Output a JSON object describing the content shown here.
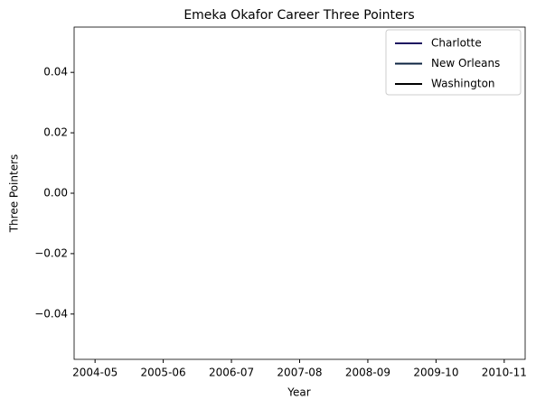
{
  "chart_data": {
    "type": "line",
    "title": "Emeka Okafor Career Three Pointers",
    "x_label": "Year",
    "y_label": "Three Pointers",
    "categories": [
      "2004-05",
      "2005-06",
      "2006-07",
      "2007-08",
      "2008-09",
      "2009-10",
      "2010-11"
    ],
    "series": [
      {
        "name": "Charlotte",
        "color": "#1d1160",
        "values": [
          null,
          null,
          null,
          null,
          null,
          null,
          null
        ]
      },
      {
        "name": "New Orleans",
        "color": "#0c2340",
        "values": [
          null,
          null,
          null,
          null,
          null,
          null,
          null
        ]
      },
      {
        "name": "Washington",
        "color": "#000000",
        "values": [
          null,
          null,
          null,
          null,
          null,
          null,
          null
        ]
      }
    ],
    "ylim": [
      -0.055,
      0.055
    ],
    "yticks": [
      {
        "value": -0.04,
        "label": "−0.04"
      },
      {
        "value": -0.02,
        "label": "−0.02"
      },
      {
        "value": 0,
        "label": "0.00"
      },
      {
        "value": 0.02,
        "label": "0.02"
      },
      {
        "value": 0.04,
        "label": "0.04"
      }
    ],
    "legend": "upper right",
    "grid": false
  }
}
